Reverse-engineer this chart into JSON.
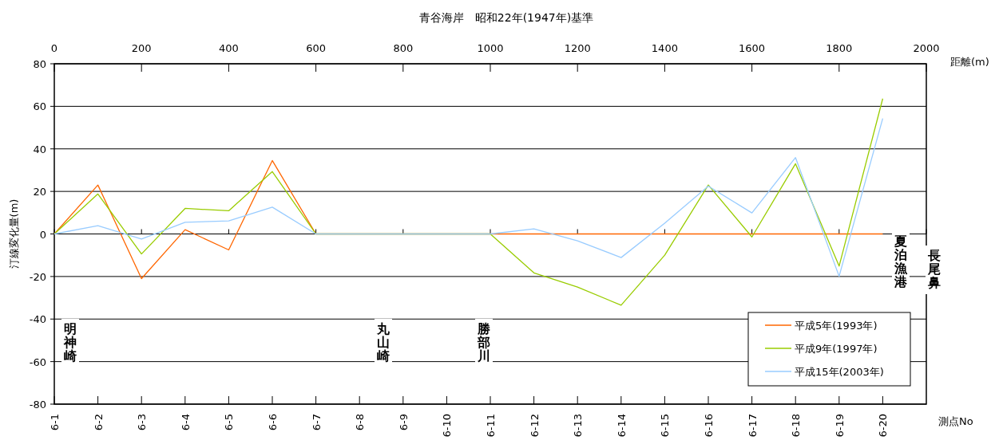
{
  "chart_data": {
    "type": "line",
    "title": "青谷海岸　昭和22年(1947年)基準",
    "ylabel": "汀線変化量(m)",
    "xlabel": "測点No",
    "x2label": "距離(m)",
    "categories": [
      "6-1",
      "6-2",
      "6-3",
      "6-4",
      "6-5",
      "6-6",
      "6-7",
      "6-8",
      "6-9",
      "6-10",
      "6-11",
      "6-12",
      "6-13",
      "6-14",
      "6-15",
      "6-16",
      "6-17",
      "6-18",
      "6-19",
      "6-20"
    ],
    "x2lim": [
      0,
      2000
    ],
    "x2ticks": [
      0,
      200,
      400,
      600,
      800,
      1000,
      1200,
      1400,
      1600,
      1800,
      2000
    ],
    "ylim": [
      -80,
      80
    ],
    "yticks": [
      -80,
      -60,
      -40,
      -20,
      0,
      20,
      40,
      60,
      80
    ],
    "grid": "y",
    "legend": "bottom right",
    "marker": "none",
    "line_style": "solid",
    "series": [
      {
        "name": "平成5年(1993年)",
        "color": "#ff6600",
        "values": [
          0,
          23,
          -21,
          2,
          -7.5,
          34.5,
          0,
          0,
          0,
          0,
          0,
          0,
          0,
          0,
          0,
          0,
          0,
          0,
          0,
          0
        ]
      },
      {
        "name": "平成9年(1997年)",
        "color": "#99cc00",
        "values": [
          0,
          18.8,
          -9.4,
          12,
          10.9,
          29.3,
          0,
          0,
          0,
          0,
          0,
          -18.3,
          -25,
          -33.5,
          -10,
          23,
          -1.4,
          33,
          -15.1,
          63.6
        ]
      },
      {
        "name": "平成15年(2003年)",
        "color": "#99ccff",
        "values": [
          0,
          3.9,
          -2.4,
          5.5,
          6.1,
          12.6,
          0,
          0,
          0,
          0,
          0,
          2.4,
          -3.2,
          -11.1,
          5.1,
          22.5,
          9.9,
          35.9,
          -19.9,
          54.3
        ]
      }
    ],
    "annotations": [
      "明神崎",
      "丸山崎",
      "勝部川",
      "夏泊漁港",
      "長尾鼻"
    ]
  }
}
